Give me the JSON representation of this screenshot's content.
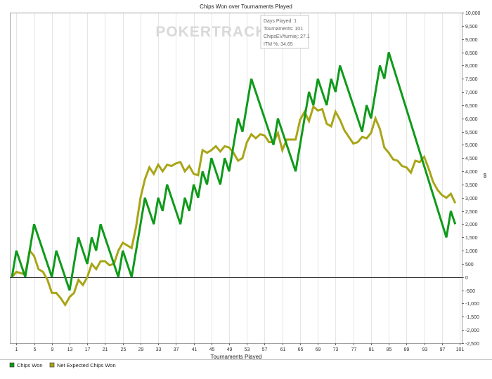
{
  "chart_data": {
    "type": "line",
    "title": "Chips Won over Tournaments Played",
    "xlabel": "Tournaments Played",
    "ylabel": "$",
    "watermark": "POKERTRACKER",
    "xlim": [
      1,
      101
    ],
    "ylim": [
      -2500,
      10000
    ],
    "xticks": [
      1,
      5,
      9,
      13,
      17,
      21,
      25,
      29,
      33,
      37,
      41,
      45,
      49,
      53,
      57,
      61,
      65,
      69,
      73,
      77,
      81,
      85,
      89,
      93,
      97,
      101
    ],
    "yticks": [
      -2500,
      -2000,
      -1500,
      -1000,
      -500,
      0,
      500,
      1000,
      1500,
      2000,
      2500,
      3000,
      3500,
      4000,
      4500,
      5000,
      5500,
      6000,
      6500,
      7000,
      7500,
      8000,
      8500,
      9000,
      9500,
      10000
    ],
    "grid": "vertical",
    "legend_position": "bottom-left",
    "tooltip": {
      "lines": [
        "Days Played: 1",
        "Tournaments: 101",
        "ChipsEV/turniej: 27.1",
        "ITM %: 34.65"
      ]
    },
    "series": [
      {
        "name": "Chips Won",
        "color": "#0f9a1a",
        "points": [
          [
            0,
            0
          ],
          [
            1,
            1000
          ],
          [
            3,
            0
          ],
          [
            5,
            2000
          ],
          [
            9,
            0
          ],
          [
            10,
            1000
          ],
          [
            13,
            -500
          ],
          [
            15,
            1500
          ],
          [
            17,
            500
          ],
          [
            18,
            1500
          ],
          [
            19,
            1000
          ],
          [
            20,
            2000
          ],
          [
            24,
            0
          ],
          [
            25,
            1000
          ],
          [
            27,
            0
          ],
          [
            30,
            3000
          ],
          [
            32,
            2000
          ],
          [
            33,
            3000
          ],
          [
            34,
            2500
          ],
          [
            35,
            3500
          ],
          [
            38,
            2000
          ],
          [
            39,
            3000
          ],
          [
            40,
            2500
          ],
          [
            41,
            3500
          ],
          [
            42,
            3000
          ],
          [
            43,
            4000
          ],
          [
            44,
            3500
          ],
          [
            45,
            4500
          ],
          [
            47,
            3500
          ],
          [
            48,
            4500
          ],
          [
            49,
            4000
          ],
          [
            51,
            6000
          ],
          [
            52,
            5500
          ],
          [
            54,
            7500
          ],
          [
            59,
            5000
          ],
          [
            60,
            6000
          ],
          [
            64,
            4000
          ],
          [
            67,
            7000
          ],
          [
            68,
            6500
          ],
          [
            69,
            7500
          ],
          [
            71,
            6500
          ],
          [
            72,
            7500
          ],
          [
            73,
            7000
          ],
          [
            74,
            8000
          ],
          [
            79,
            5500
          ],
          [
            80,
            6500
          ],
          [
            81,
            6000
          ],
          [
            83,
            8000
          ],
          [
            84,
            7500
          ],
          [
            85,
            8500
          ],
          [
            98,
            1500
          ],
          [
            99,
            2500
          ],
          [
            100,
            2000
          ]
        ]
      },
      {
        "name": "Net Expected Chips Won",
        "color": "#a8a517",
        "points": [
          [
            0,
            0
          ],
          [
            1,
            200
          ],
          [
            3,
            100
          ],
          [
            4,
            1000
          ],
          [
            5,
            800
          ],
          [
            6,
            300
          ],
          [
            7,
            200
          ],
          [
            8,
            -100
          ],
          [
            9,
            -600
          ],
          [
            10,
            -600
          ],
          [
            11,
            -800
          ],
          [
            12,
            -1050
          ],
          [
            13,
            -750
          ],
          [
            14,
            -600
          ],
          [
            15,
            -100
          ],
          [
            16,
            -300
          ],
          [
            17,
            0
          ],
          [
            18,
            500
          ],
          [
            19,
            300
          ],
          [
            20,
            600
          ],
          [
            21,
            600
          ],
          [
            22,
            450
          ],
          [
            23,
            500
          ],
          [
            24,
            1000
          ],
          [
            25,
            1300
          ],
          [
            26,
            1200
          ],
          [
            27,
            1100
          ],
          [
            28,
            1900
          ],
          [
            29,
            3000
          ],
          [
            30,
            3700
          ],
          [
            31,
            4150
          ],
          [
            32,
            3900
          ],
          [
            33,
            4250
          ],
          [
            34,
            4000
          ],
          [
            35,
            4250
          ],
          [
            36,
            4200
          ],
          [
            37,
            4300
          ],
          [
            38,
            4350
          ],
          [
            39,
            4000
          ],
          [
            40,
            4200
          ],
          [
            41,
            3900
          ],
          [
            42,
            3850
          ],
          [
            43,
            4800
          ],
          [
            44,
            4700
          ],
          [
            45,
            4800
          ],
          [
            46,
            4950
          ],
          [
            47,
            4750
          ],
          [
            48,
            4950
          ],
          [
            49,
            4900
          ],
          [
            50,
            4700
          ],
          [
            51,
            4400
          ],
          [
            52,
            4500
          ],
          [
            53,
            5100
          ],
          [
            54,
            5400
          ],
          [
            55,
            5250
          ],
          [
            56,
            5400
          ],
          [
            57,
            5350
          ],
          [
            58,
            5100
          ],
          [
            59,
            5100
          ],
          [
            60,
            5450
          ],
          [
            61,
            4800
          ],
          [
            62,
            5200
          ],
          [
            63,
            5200
          ],
          [
            64,
            5200
          ],
          [
            65,
            5950
          ],
          [
            66,
            6250
          ],
          [
            67,
            5900
          ],
          [
            68,
            6450
          ],
          [
            69,
            6300
          ],
          [
            70,
            6350
          ],
          [
            71,
            5800
          ],
          [
            72,
            5700
          ],
          [
            73,
            6250
          ],
          [
            74,
            5950
          ],
          [
            75,
            5550
          ],
          [
            76,
            5300
          ],
          [
            77,
            5050
          ],
          [
            78,
            5100
          ],
          [
            79,
            5300
          ],
          [
            80,
            5250
          ],
          [
            81,
            5450
          ],
          [
            82,
            6000
          ],
          [
            83,
            5600
          ],
          [
            84,
            4900
          ],
          [
            85,
            4700
          ],
          [
            86,
            4450
          ],
          [
            87,
            4400
          ],
          [
            88,
            4200
          ],
          [
            89,
            4150
          ],
          [
            90,
            3950
          ],
          [
            91,
            4400
          ],
          [
            92,
            4350
          ],
          [
            93,
            4550
          ],
          [
            94,
            4100
          ],
          [
            95,
            3600
          ],
          [
            96,
            3300
          ],
          [
            97,
            3100
          ],
          [
            98,
            3000
          ],
          [
            99,
            3150
          ],
          [
            100,
            2800
          ]
        ]
      }
    ]
  }
}
